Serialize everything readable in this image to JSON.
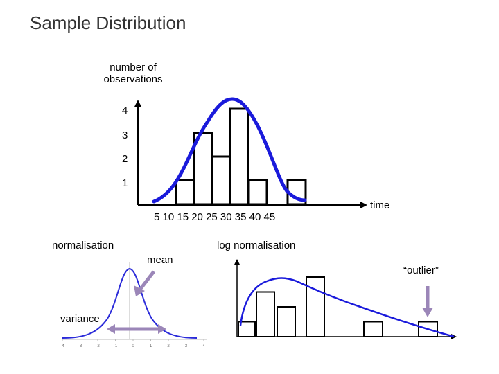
{
  "slide": {
    "title": "Sample Distribution"
  },
  "top_chart": {
    "ylabel_line1": "number of",
    "ylabel_line2": "observations",
    "yticks": [
      "4",
      "3",
      "2",
      "1"
    ],
    "xticks": "5  10  15  20  25  30  35  40  45",
    "xlabel": "time",
    "bar_heights": [
      1,
      3,
      2,
      4,
      1,
      1
    ],
    "curve_color": "#1a1adb"
  },
  "bottom_left": {
    "title": "normalisation",
    "mean_label": "mean",
    "variance_label": "variance",
    "xticks": [
      "-4",
      "-3",
      "-2",
      "-1",
      "0",
      "1",
      "2",
      "3",
      "4"
    ],
    "arrow_color": "#9b86b8",
    "curve_color": "#2b2bd9"
  },
  "bottom_right": {
    "title": "log normalisation",
    "outlier_label": "“outlier”",
    "bar_heights": [
      1,
      3,
      2,
      4,
      1,
      1
    ],
    "curve_color": "#1a1adb",
    "arrow_color": "#9b86b8"
  }
}
